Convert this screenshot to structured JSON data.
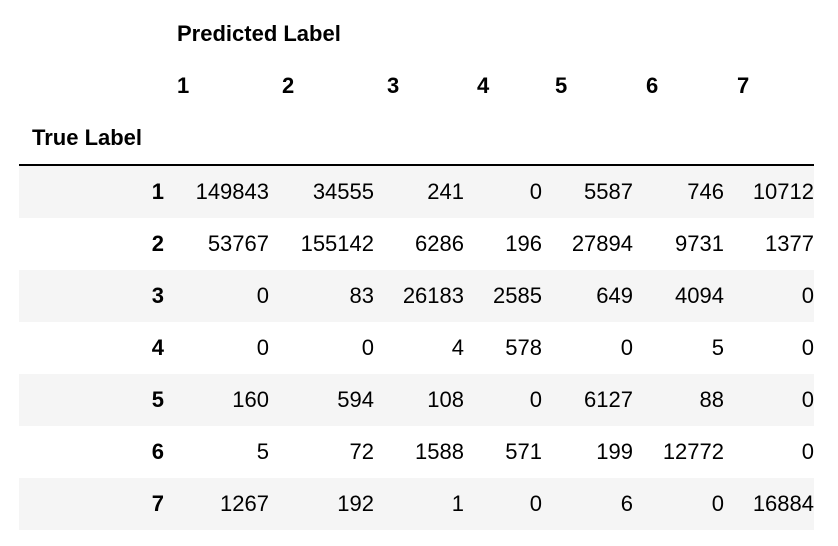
{
  "columns_name": "Predicted Label",
  "index_name": "True Label",
  "columns": [
    "1",
    "2",
    "3",
    "4",
    "5",
    "6",
    "7"
  ],
  "rows": [
    {
      "label": "1",
      "values": [
        "149843",
        "34555",
        "241",
        "0",
        "5587",
        "746",
        "10712"
      ]
    },
    {
      "label": "2",
      "values": [
        "53767",
        "155142",
        "6286",
        "196",
        "27894",
        "9731",
        "1377"
      ]
    },
    {
      "label": "3",
      "values": [
        "0",
        "83",
        "26183",
        "2585",
        "649",
        "4094",
        "0"
      ]
    },
    {
      "label": "4",
      "values": [
        "0",
        "0",
        "4",
        "578",
        "0",
        "5",
        "0"
      ]
    },
    {
      "label": "5",
      "values": [
        "160",
        "594",
        "108",
        "0",
        "6127",
        "88",
        "0"
      ]
    },
    {
      "label": "6",
      "values": [
        "5",
        "72",
        "1588",
        "571",
        "199",
        "12772",
        "0"
      ]
    },
    {
      "label": "7",
      "values": [
        "1267",
        "192",
        "1",
        "0",
        "6",
        "0",
        "16884"
      ]
    }
  ],
  "colors": {
    "striped_row": "#f5f5f5",
    "header_rule": "#000000"
  }
}
